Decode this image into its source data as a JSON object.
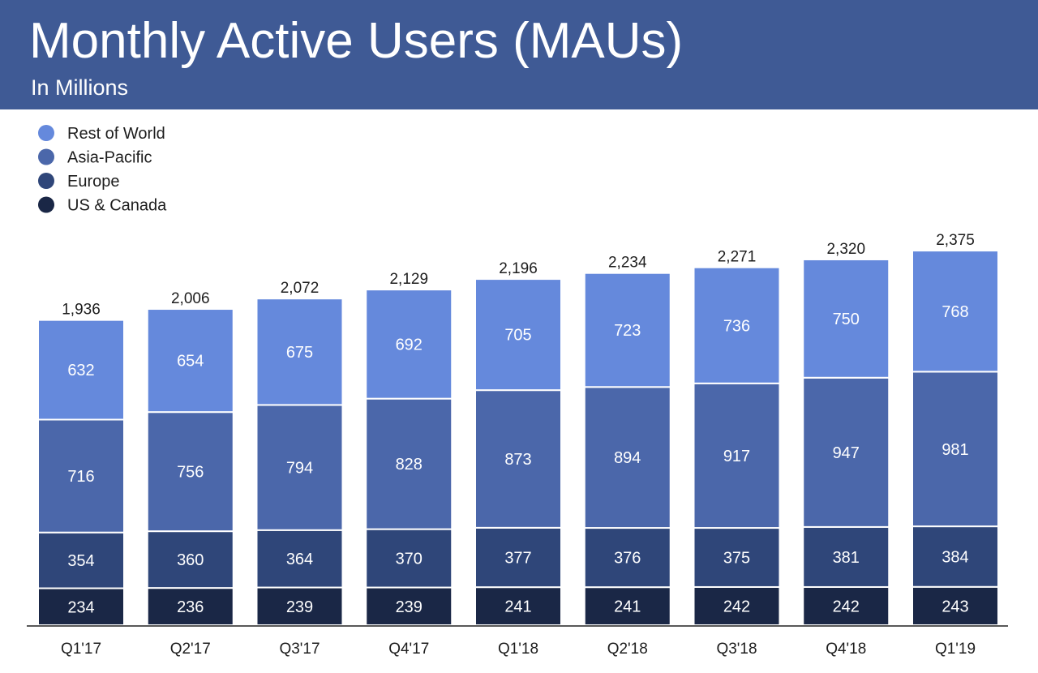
{
  "header": {
    "title": "Monthly Active Users (MAUs)",
    "subtitle": "In Millions"
  },
  "colors": {
    "header_bg": "#3f5a95",
    "rest_of_world": "#6589dc",
    "asia_pacific": "#4b67aa",
    "europe": "#2f4679",
    "us_canada": "#1a2746"
  },
  "chart_data": {
    "type": "bar",
    "stacked": true,
    "title": "Monthly Active Users (MAUs)",
    "subtitle": "In Millions",
    "xlabel": "",
    "ylabel": "",
    "grid": false,
    "legend_position": "top-left",
    "categories": [
      "Q1'17",
      "Q2'17",
      "Q3'17",
      "Q4'17",
      "Q1'18",
      "Q2'18",
      "Q3'18",
      "Q4'18",
      "Q1'19"
    ],
    "totals": [
      "1,936",
      "2,006",
      "2,072",
      "2,129",
      "2,196",
      "2,234",
      "2,271",
      "2,320",
      "2,375"
    ],
    "series": [
      {
        "name": "US & Canada",
        "color": "#1a2746",
        "values": [
          234,
          236,
          239,
          239,
          241,
          241,
          242,
          242,
          243
        ]
      },
      {
        "name": "Europe",
        "color": "#2f4679",
        "values": [
          354,
          360,
          364,
          370,
          377,
          376,
          375,
          381,
          384
        ]
      },
      {
        "name": "Asia-Pacific",
        "color": "#4b67aa",
        "values": [
          716,
          756,
          794,
          828,
          873,
          894,
          917,
          947,
          981
        ]
      },
      {
        "name": "Rest of World",
        "color": "#6589dc",
        "values": [
          632,
          654,
          675,
          692,
          705,
          723,
          736,
          750,
          768
        ]
      }
    ],
    "legend_order": [
      "Rest of World",
      "Asia-Pacific",
      "Europe",
      "US & Canada"
    ]
  }
}
